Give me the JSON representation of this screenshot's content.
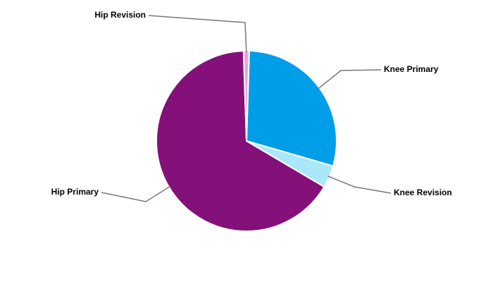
{
  "chart_data": {
    "type": "pie",
    "categories": [
      "Knee Primary",
      "Knee Revision",
      "Hip Primary",
      "Hip Revision"
    ],
    "values": [
      29,
      4,
      66,
      1
    ],
    "colors": [
      "#009ee8",
      "#a8e8fa",
      "#841079",
      "#e4a8dc"
    ]
  }
}
